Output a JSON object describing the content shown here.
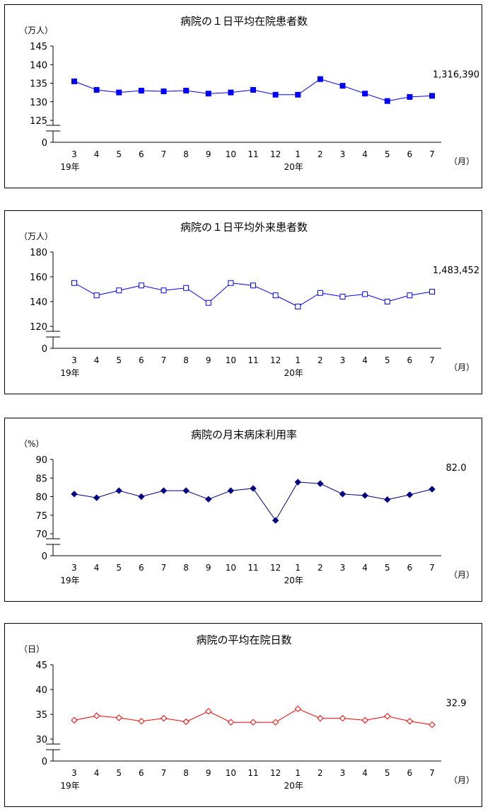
{
  "chart_data": [
    {
      "type": "line",
      "title": "病院の１日平均在院患者数",
      "unit": "（万人）",
      "xunit": "（月）",
      "categories": [
        "3",
        "4",
        "5",
        "6",
        "7",
        "8",
        "9",
        "10",
        "11",
        "12",
        "1",
        "2",
        "3",
        "4",
        "5",
        "6",
        "7"
      ],
      "year_labels": [
        {
          "index": 0,
          "label": "19年"
        },
        {
          "index": 10,
          "label": "20年"
        }
      ],
      "yticks": [
        "145",
        "140",
        "135",
        "130",
        "125",
        "0"
      ],
      "ylim": [
        125,
        145
      ],
      "axis_break": true,
      "series": [
        {
          "values": [
            135.5,
            133.2,
            132.5,
            133.0,
            132.8,
            133.0,
            132.2,
            132.5,
            133.2,
            131.9,
            131.9,
            136.1,
            134.3,
            132.2,
            130.2,
            131.3,
            131.6
          ],
          "color": "#0000ff",
          "marker": "square-filled"
        }
      ],
      "last_label": "1,316,390"
    },
    {
      "type": "line",
      "title": "病院の１日平均外来患者数",
      "unit": "（万人）",
      "xunit": "（月）",
      "categories": [
        "3",
        "4",
        "5",
        "6",
        "7",
        "8",
        "9",
        "10",
        "11",
        "12",
        "1",
        "2",
        "3",
        "4",
        "5",
        "6",
        "7"
      ],
      "year_labels": [
        {
          "index": 0,
          "label": "19年"
        },
        {
          "index": 10,
          "label": "20年"
        }
      ],
      "yticks": [
        "180",
        "160",
        "140",
        "120",
        "0"
      ],
      "ylim": [
        120,
        180
      ],
      "axis_break": true,
      "series": [
        {
          "values": [
            155,
            145,
            149,
            153,
            149,
            151,
            139,
            155,
            153,
            145,
            136,
            147,
            144,
            146,
            140,
            145,
            148
          ],
          "color": "#0000ff",
          "marker": "square-open"
        }
      ],
      "last_label": "1,483,452"
    },
    {
      "type": "line",
      "title": "病院の月末病床利用率",
      "unit": "（%）",
      "xunit": "（月）",
      "categories": [
        "3",
        "4",
        "5",
        "6",
        "7",
        "8",
        "9",
        "10",
        "11",
        "12",
        "1",
        "2",
        "3",
        "4",
        "5",
        "6",
        "7"
      ],
      "year_labels": [
        {
          "index": 0,
          "label": "19年"
        },
        {
          "index": 10,
          "label": "20年"
        }
      ],
      "yticks": [
        "90",
        "85",
        "80",
        "75",
        "70",
        "0"
      ],
      "ylim": [
        70,
        90
      ],
      "axis_break": true,
      "series": [
        {
          "values": [
            80.7,
            79.7,
            81.6,
            80.0,
            81.6,
            81.6,
            79.3,
            81.6,
            82.2,
            73.6,
            83.9,
            83.5,
            80.7,
            80.3,
            79.2,
            80.5,
            82.0
          ],
          "color": "#000080",
          "marker": "diamond-filled"
        }
      ],
      "last_label": "82.0"
    },
    {
      "type": "line",
      "title": "病院の平均在院日数",
      "unit": "（日）",
      "xunit": "（月）",
      "categories": [
        "3",
        "4",
        "5",
        "6",
        "7",
        "8",
        "9",
        "10",
        "11",
        "12",
        "1",
        "2",
        "3",
        "4",
        "5",
        "6",
        "7"
      ],
      "year_labels": [
        {
          "index": 0,
          "label": "19年"
        },
        {
          "index": 10,
          "label": "20年"
        }
      ],
      "yticks": [
        "45",
        "40",
        "35",
        "30",
        "0"
      ],
      "ylim": [
        30,
        45
      ],
      "axis_break": true,
      "series": [
        {
          "values": [
            33.8,
            34.7,
            34.3,
            33.6,
            34.2,
            33.5,
            35.6,
            33.4,
            33.4,
            33.4,
            36.1,
            34.2,
            34.2,
            33.8,
            34.6,
            33.6,
            32.9
          ],
          "color": "#ff0000",
          "marker": "diamond-open"
        }
      ],
      "last_label": "32.9"
    }
  ]
}
